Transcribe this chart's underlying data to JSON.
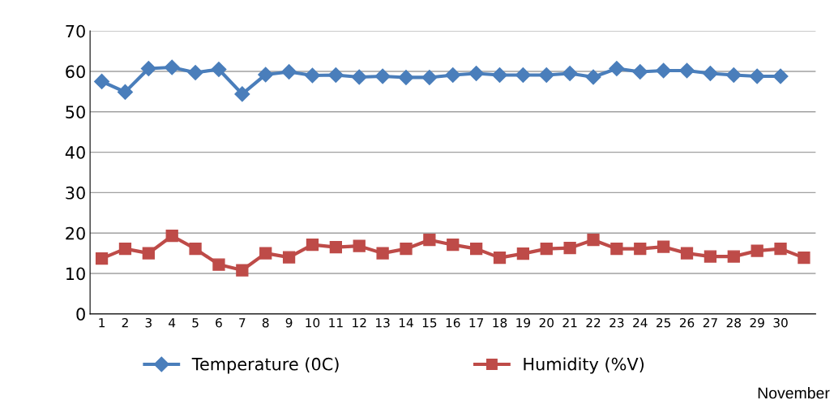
{
  "chart_data": {
    "type": "line",
    "categories": [
      "1",
      "2",
      "3",
      "4",
      "5",
      "6",
      "7",
      "8",
      "9",
      "10",
      "11",
      "12",
      "13",
      "14",
      "15",
      "16",
      "17",
      "18",
      "19",
      "20",
      "21",
      "22",
      "23",
      "24",
      "25",
      "26",
      "27",
      "28",
      "29",
      "30",
      null
    ],
    "series": [
      {
        "name": "Temperature (0C)",
        "color": "#4a7ebb",
        "marker": "diamond",
        "values": [
          57.5,
          54.9,
          60.7,
          61.0,
          59.7,
          60.5,
          54.4,
          59.2,
          59.9,
          59.0,
          59.1,
          58.6,
          58.8,
          58.5,
          58.5,
          59.1,
          59.5,
          59.1,
          59.1,
          59.1,
          59.5,
          58.6,
          60.7,
          59.9,
          60.2,
          60.2,
          59.5,
          59.1,
          58.8,
          58.8,
          null
        ]
      },
      {
        "name": "Humidity (%V)",
        "color": "#be4b48",
        "marker": "square",
        "values": [
          13.7,
          16.1,
          15.0,
          19.3,
          16.1,
          12.2,
          10.8,
          15.0,
          14.0,
          17.1,
          16.5,
          16.8,
          15.0,
          16.1,
          18.3,
          17.1,
          16.1,
          13.9,
          14.9,
          16.1,
          16.3,
          18.3,
          16.1,
          16.1,
          16.6,
          15.0,
          14.2,
          14.2,
          15.6,
          16.1,
          13.9
        ]
      }
    ],
    "ylim": [
      0,
      70
    ],
    "yticks": [
      0,
      10,
      20,
      30,
      40,
      50,
      60,
      70
    ],
    "grid": "y",
    "legend": "bottom",
    "line_style": "solid",
    "annotations": [
      "November"
    ]
  }
}
